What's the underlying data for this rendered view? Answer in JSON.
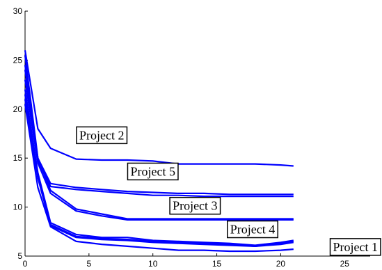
{
  "chart_data": {
    "type": "line",
    "title": "",
    "xlabel": "",
    "ylabel": "",
    "xlim": [
      0,
      27
    ],
    "ylim": [
      5,
      30
    ],
    "xticks": [
      0,
      5,
      10,
      15,
      20,
      25
    ],
    "yticks": [
      5,
      10,
      15,
      20,
      25,
      30
    ],
    "grid": false,
    "line_color": "#0000ff",
    "annotations": [
      {
        "text": "Project 2",
        "x": 6.0,
        "y": 17.2
      },
      {
        "text": "Project 5",
        "x": 10.0,
        "y": 13.5
      },
      {
        "text": "Project 3",
        "x": 13.3,
        "y": 10.0
      },
      {
        "text": "Project 4",
        "x": 17.8,
        "y": 7.6
      },
      {
        "text": "Project 1",
        "x": 25.9,
        "y": 5.8
      }
    ],
    "series": [
      {
        "x": [
          0,
          1,
          2,
          4,
          6,
          8,
          10,
          12,
          14,
          16,
          18,
          20,
          21
        ],
        "y": [
          26.0,
          18.0,
          16.0,
          14.9,
          14.8,
          14.8,
          14.7,
          14.4,
          14.4,
          14.4,
          14.4,
          14.3,
          14.2
        ]
      },
      {
        "x": [
          0,
          1,
          2,
          4,
          6,
          8,
          10,
          12,
          14,
          16,
          18,
          20,
          21
        ],
        "y": [
          25.5,
          15.0,
          12.4,
          12.0,
          11.8,
          11.6,
          11.5,
          11.4,
          11.4,
          11.3,
          11.3,
          11.3,
          11.3
        ]
      },
      {
        "x": [
          0,
          1,
          2,
          4,
          6,
          8,
          10,
          12,
          14,
          16,
          18,
          20,
          21
        ],
        "y": [
          24.5,
          14.7,
          12.1,
          11.8,
          11.6,
          11.4,
          11.2,
          11.2,
          11.1,
          11.1,
          11.1,
          11.1,
          11.1
        ]
      },
      {
        "x": [
          0,
          1,
          2,
          4,
          6,
          8,
          10,
          12,
          14,
          16,
          18,
          20,
          21
        ],
        "y": [
          24.0,
          15.0,
          11.7,
          9.8,
          9.3,
          8.8,
          8.8,
          8.8,
          8.8,
          8.8,
          8.8,
          8.8,
          8.8
        ]
      },
      {
        "x": [
          0,
          1,
          2,
          4,
          6,
          8,
          10,
          12,
          14,
          16,
          18,
          20,
          21
        ],
        "y": [
          23.0,
          14.5,
          11.4,
          9.6,
          9.1,
          8.7,
          8.7,
          8.7,
          8.7,
          8.7,
          8.7,
          8.7,
          8.7
        ]
      },
      {
        "x": [
          0,
          1,
          2,
          4,
          6,
          8,
          10,
          12,
          14,
          16,
          18,
          20,
          21
        ],
        "y": [
          22.0,
          13.5,
          8.4,
          7.2,
          6.9,
          6.9,
          6.6,
          6.5,
          6.4,
          6.3,
          6.1,
          6.4,
          6.6
        ]
      },
      {
        "x": [
          0,
          1,
          2,
          4,
          6,
          8,
          10,
          12,
          14,
          16,
          18,
          20,
          21
        ],
        "y": [
          21.5,
          13.2,
          8.2,
          7.0,
          6.8,
          6.7,
          6.5,
          6.4,
          6.3,
          6.2,
          6.0,
          6.3,
          6.5
        ]
      },
      {
        "x": [
          0,
          1,
          2,
          4,
          6,
          8,
          10,
          12,
          14,
          16,
          18,
          20,
          21
        ],
        "y": [
          21.0,
          13.0,
          8.1,
          6.9,
          6.7,
          6.6,
          6.4,
          6.3,
          6.2,
          6.1,
          6.0,
          6.2,
          6.4
        ]
      },
      {
        "x": [
          0,
          1,
          2,
          4,
          6,
          8,
          10,
          12,
          14,
          16,
          18,
          20,
          21
        ],
        "y": [
          20.5,
          12.0,
          8.0,
          6.5,
          6.2,
          6.0,
          5.8,
          5.6,
          5.6,
          5.5,
          5.5,
          5.6,
          5.7
        ]
      }
    ]
  }
}
